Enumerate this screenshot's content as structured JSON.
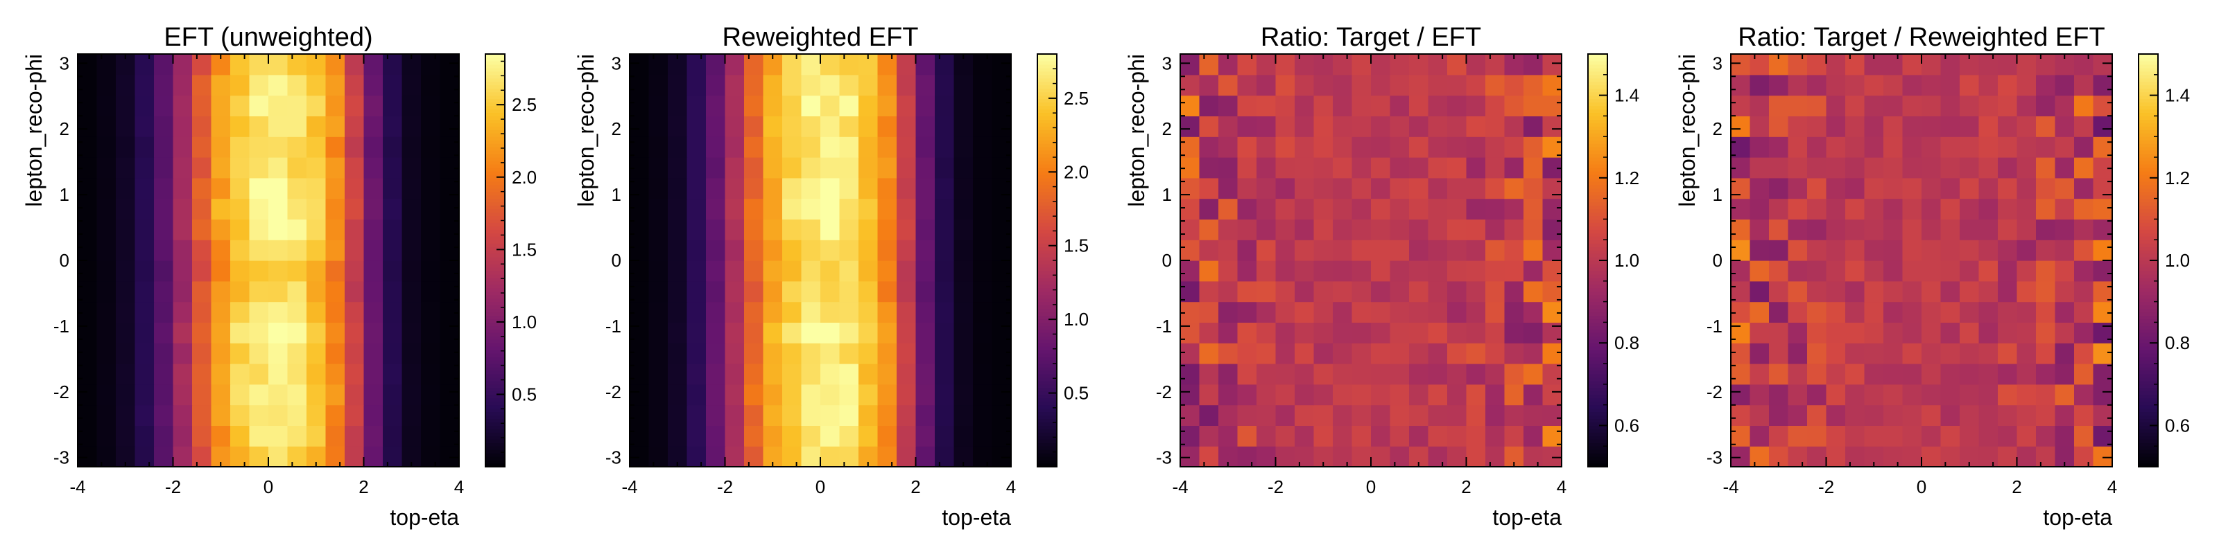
{
  "colormap": "inferno",
  "x_ticks": [
    "-4",
    "-2",
    "0",
    "2",
    "4"
  ],
  "y_ticks": [
    "3",
    "2",
    "1",
    "0",
    "-1",
    "-2",
    "-3"
  ],
  "chart_data": [
    {
      "type": "heatmap",
      "title": "EFT (unweighted)",
      "xlabel": "top-eta",
      "ylabel": "lepton_reco-phi",
      "xlim": [
        -4,
        4
      ],
      "ylim": [
        -3.14,
        3.14
      ],
      "grid": "20 x 20 bins",
      "colorbar": {
        "min": 0.0,
        "max": 2.85,
        "ticks": [
          "0.5",
          "1.0",
          "1.5",
          "2.0",
          "2.5"
        ]
      },
      "eta_profile": [
        0.03,
        0.08,
        0.18,
        0.4,
        0.75,
        1.25,
        1.8,
        2.25,
        2.55,
        2.72,
        2.75,
        2.7,
        2.5,
        2.15,
        1.55,
        0.85,
        0.38,
        0.14,
        0.06,
        0.03
      ],
      "phi_modulation": [
        0.95,
        0.97,
        1.0,
        1.02,
        1.0,
        0.98,
        1.02,
        0.98,
        0.95,
        0.94,
        0.97,
        1.0,
        1.02,
        1.0,
        0.98,
        0.97,
        1.0,
        1.02,
        0.99,
        0.96
      ],
      "noise": 0.05,
      "seed": 11
    },
    {
      "type": "heatmap",
      "title": "Reweighted EFT",
      "xlabel": "top-eta",
      "ylabel": "lepton_reco-phi",
      "xlim": [
        -4,
        4
      ],
      "ylim": [
        -3.14,
        3.14
      ],
      "grid": "20 x 20 bins",
      "colorbar": {
        "min": 0.0,
        "max": 2.8,
        "ticks": [
          "0.5",
          "1.0",
          "1.5",
          "2.0",
          "2.5"
        ]
      },
      "eta_profile": [
        0.03,
        0.08,
        0.18,
        0.42,
        0.8,
        1.3,
        1.85,
        2.3,
        2.55,
        2.68,
        2.72,
        2.66,
        2.45,
        2.1,
        1.5,
        0.82,
        0.36,
        0.13,
        0.05,
        0.03
      ],
      "phi_modulation": [
        0.96,
        0.98,
        1.0,
        1.01,
        1.0,
        0.99,
        1.01,
        0.99,
        0.96,
        0.95,
        0.98,
        1.0,
        1.01,
        1.0,
        0.99,
        0.98,
        1.0,
        1.01,
        0.99,
        0.97
      ],
      "noise": 0.05,
      "seed": 23
    },
    {
      "type": "heatmap",
      "title": "Ratio: Target / EFT",
      "xlabel": "top-eta",
      "ylabel": "lepton_reco-phi",
      "xlim": [
        -4,
        4
      ],
      "ylim": [
        -3.14,
        3.14
      ],
      "grid": "20 x 20 bins",
      "colorbar": {
        "min": 0.5,
        "max": 1.5,
        "ticks": [
          "0.6",
          "0.8",
          "1.0",
          "1.2",
          "1.4"
        ]
      },
      "center": 1.0,
      "noise_center": 0.05,
      "noise_edge": 0.22,
      "seed": 37
    },
    {
      "type": "heatmap",
      "title": "Ratio: Target / Reweighted EFT",
      "xlabel": "top-eta",
      "ylabel": "lepton_reco-phi",
      "xlim": [
        -4,
        4
      ],
      "ylim": [
        -3.14,
        3.14
      ],
      "grid": "20 x 20 bins",
      "colorbar": {
        "min": 0.5,
        "max": 1.5,
        "ticks": [
          "0.6",
          "0.8",
          "1.0",
          "1.2",
          "1.4"
        ]
      },
      "center": 1.0,
      "noise_center": 0.05,
      "noise_edge": 0.23,
      "seed": 51
    }
  ]
}
